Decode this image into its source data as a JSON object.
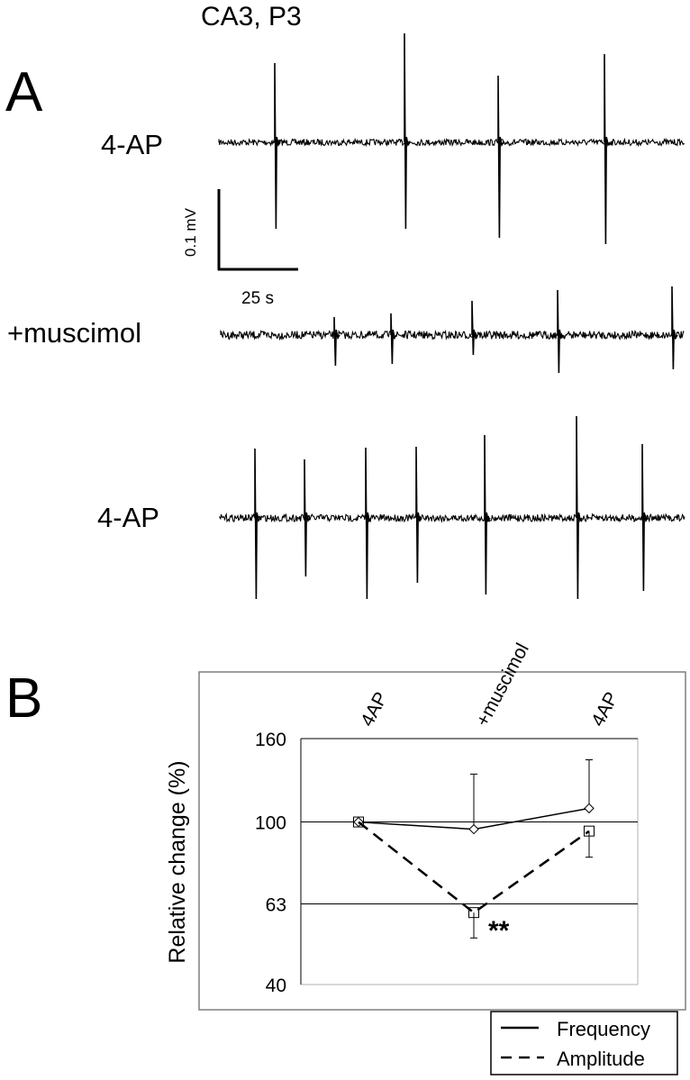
{
  "figure": {
    "title": "CA3, P3",
    "panel_a_label": "A",
    "panel_b_label": "B"
  },
  "panel_a": {
    "traces": [
      {
        "label": "4-AP"
      },
      {
        "label": "+muscimol"
      },
      {
        "label": "4-AP"
      }
    ],
    "scale_bar": {
      "voltage_label": "0.1 mV",
      "time_label": "25 s"
    }
  },
  "chart_data": {
    "type": "line",
    "categories": [
      "4AP",
      "+muscimol",
      "4AP"
    ],
    "ylabel": "Relative change (%)",
    "yscale": "log",
    "ylim": [
      40,
      160
    ],
    "yticks": [
      40,
      63,
      100,
      160
    ],
    "gridlines_at": [
      63,
      100,
      160
    ],
    "series": [
      {
        "name": "Frequency",
        "style": "solid",
        "marker": "diamond",
        "values": [
          100,
          96,
          108
        ],
        "error_up": [
          0,
          35,
          34
        ],
        "error_down": [
          0,
          0,
          0
        ]
      },
      {
        "name": "Amplitude",
        "style": "dashed",
        "marker": "square",
        "values": [
          100,
          60,
          95
        ],
        "error_up": [
          0,
          0,
          0
        ],
        "error_down": [
          0,
          8,
          13
        ]
      }
    ],
    "annotations": [
      {
        "text": "**",
        "category": "+muscimol",
        "series": "Amplitude"
      }
    ],
    "legend": {
      "position": "bottom-right",
      "entries": [
        {
          "label": "Frequency",
          "style": "solid"
        },
        {
          "label": "Amplitude",
          "style": "dashed"
        }
      ]
    },
    "colors": {
      "line": "#000000",
      "frame": "#7f7f7f",
      "grid": "#000000"
    }
  }
}
